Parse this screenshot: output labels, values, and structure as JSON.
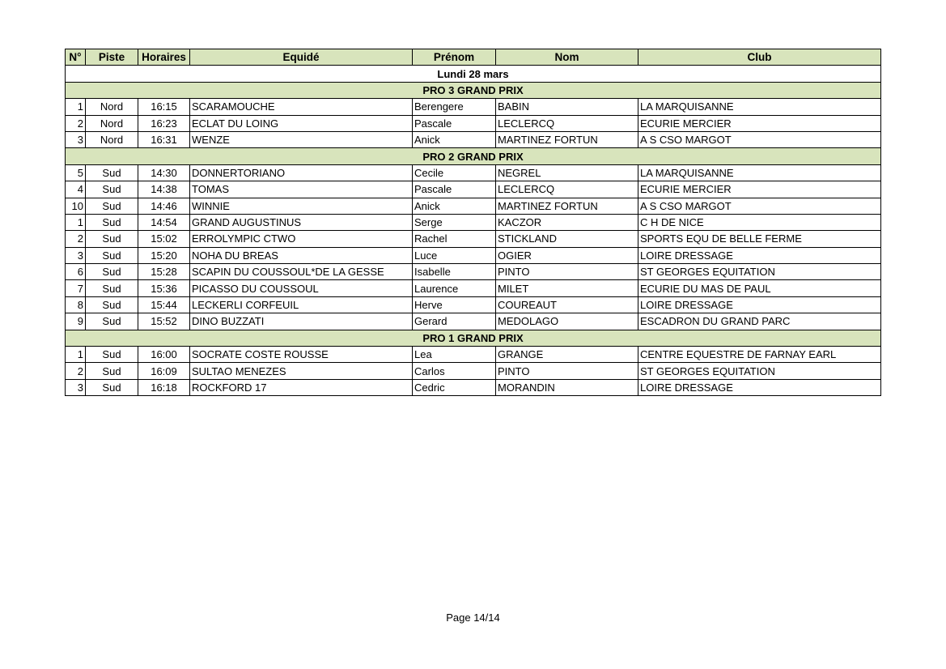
{
  "headers": [
    "N°",
    "Piste",
    "Horaires",
    "Equidé",
    "Prénom",
    "Nom",
    "Club"
  ],
  "day": "Lundi 28 mars",
  "sections": [
    {
      "title": "PRO 3 GRAND PRIX",
      "rows": [
        [
          "1",
          "Nord",
          "16:15",
          "SCARAMOUCHE",
          "Berengere",
          "BABIN",
          "LA MARQUISANNE"
        ],
        [
          "2",
          "Nord",
          "16:23",
          "ECLAT DU LOING",
          "Pascale",
          "LECLERCQ",
          "ECURIE MERCIER"
        ],
        [
          "3",
          "Nord",
          "16:31",
          "WENZE",
          "Anick",
          "MARTINEZ FORTUN",
          "A S CSO MARGOT"
        ]
      ]
    },
    {
      "title": "PRO 2 GRAND PRIX",
      "rows": [
        [
          "5",
          "Sud",
          "14:30",
          "DONNERTORIANO",
          "Cecile",
          "NEGREL",
          "LA MARQUISANNE"
        ],
        [
          "4",
          "Sud",
          "14:38",
          "TOMAS",
          "Pascale",
          "LECLERCQ",
          "ECURIE MERCIER"
        ],
        [
          "10",
          "Sud",
          "14:46",
          "WINNIE",
          "Anick",
          "MARTINEZ FORTUN",
          "A S CSO MARGOT"
        ],
        [
          "1",
          "Sud",
          "14:54",
          "GRAND AUGUSTINUS",
          "Serge",
          "KACZOR",
          "C H DE NICE"
        ],
        [
          "2",
          "Sud",
          "15:02",
          "ERROLYMPIC CTWO",
          "Rachel",
          "STICKLAND",
          "SPORTS EQU DE BELLE FERME"
        ],
        [
          "3",
          "Sud",
          "15:20",
          "NOHA DU BREAS",
          "Luce",
          "OGIER",
          "LOIRE DRESSAGE"
        ],
        [
          "6",
          "Sud",
          "15:28",
          "SCAPIN DU COUSSOUL*DE LA GESSE",
          "Isabelle",
          "PINTO",
          "ST GEORGES EQUITATION"
        ],
        [
          "7",
          "Sud",
          "15:36",
          "PICASSO DU COUSSOUL",
          "Laurence",
          "MILET",
          "ECURIE DU MAS DE PAUL"
        ],
        [
          "8",
          "Sud",
          "15:44",
          "LECKERLI CORFEUIL",
          "Herve",
          "COUREAUT",
          "LOIRE DRESSAGE"
        ],
        [
          "9",
          "Sud",
          "15:52",
          "DINO BUZZATI",
          "Gerard",
          "MEDOLAGO",
          "ESCADRON DU GRAND PARC"
        ]
      ]
    },
    {
      "title": "PRO 1 GRAND PRIX",
      "rows": [
        [
          "1",
          "Sud",
          "16:00",
          "SOCRATE COSTE ROUSSE",
          "Lea",
          "GRANGE",
          "CENTRE EQUESTRE DE FARNAY EARL"
        ],
        [
          "2",
          "Sud",
          "16:09",
          "SULTAO MENEZES",
          "Carlos",
          "PINTO",
          "ST GEORGES EQUITATION"
        ],
        [
          "3",
          "Sud",
          "16:18",
          "ROCKFORD 17",
          "Cedric",
          "MORANDIN",
          "LOIRE DRESSAGE"
        ]
      ]
    }
  ],
  "footer": "Page 14/14",
  "colors": {
    "header_bg": "#d8e4bc"
  }
}
